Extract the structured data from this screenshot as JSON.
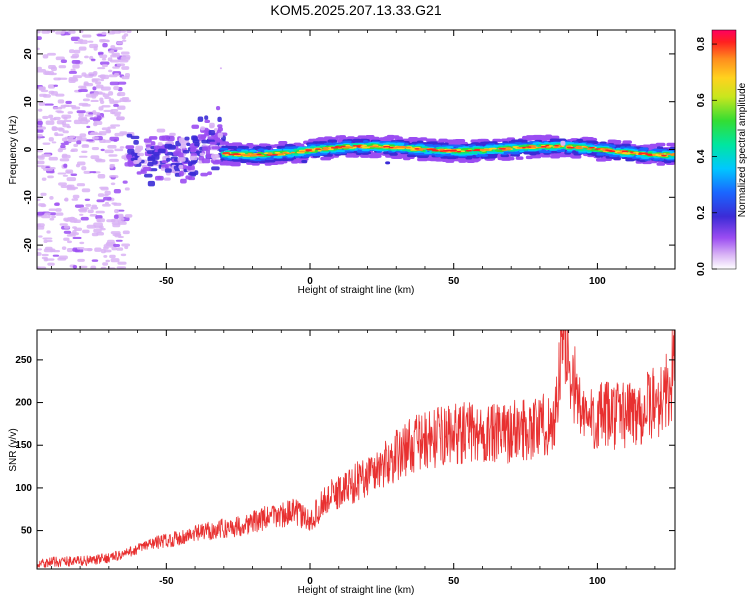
{
  "figure": {
    "title": "KOM5.2025.207.13.33.G21"
  },
  "colors": {
    "snr_line": "#e83030",
    "frame": "#000000",
    "colormap": [
      "#ffffff",
      "#d9b3f5",
      "#9b4df2",
      "#3b2bd6",
      "#1a66ff",
      "#00c8ff",
      "#00e6a0",
      "#33dd33",
      "#c8e61e",
      "#ffd21e",
      "#ff8c1e",
      "#ff2020",
      "#ff0060"
    ]
  },
  "chart_data": [
    {
      "type": "heatmap",
      "title": "",
      "xlabel": "Height of straight line (km)",
      "ylabel": "Frequency (Hz)",
      "xlim": [
        -95,
        127
      ],
      "ylim": [
        -25,
        25
      ],
      "xticks": [
        -50,
        0,
        50,
        100
      ],
      "yticks": [
        -20,
        -10,
        0,
        10,
        20
      ],
      "colorbar": {
        "label": "Normalized spectral amplitude",
        "range": [
          0,
          0.85
        ],
        "ticks": [
          0.0,
          0.2,
          0.4,
          0.6,
          0.8
        ]
      },
      "features": [
        {
          "description": "scattered weak noise",
          "x_range": [
            -95,
            -63
          ],
          "y_range": [
            -25,
            25
          ],
          "amplitude": 0.1
        },
        {
          "description": "onset cluster",
          "x_range": [
            -63,
            -30
          ],
          "y_range": [
            -6,
            6
          ],
          "amplitude": 0.25
        },
        {
          "description": "narrow band near 0 Hz",
          "x_range": [
            -30,
            127
          ],
          "y_range": [
            -2,
            2
          ],
          "amplitude_peak": 0.85
        }
      ]
    },
    {
      "type": "line",
      "title": "",
      "xlabel": "Height of straight line (km)",
      "ylabel": "SNR (v/v)",
      "xlim": [
        -95,
        127
      ],
      "ylim": [
        5,
        285
      ],
      "xticks": [
        -50,
        0,
        50,
        100
      ],
      "yticks": [
        50,
        100,
        150,
        200,
        250
      ],
      "series": [
        {
          "x": [
            -95,
            -85,
            -75,
            -65,
            -55,
            -45,
            -35,
            -25,
            -15,
            -5,
            0,
            5,
            15,
            25,
            35,
            45,
            55,
            65,
            75,
            85,
            88,
            95,
            105,
            115,
            120,
            125,
            127
          ],
          "y": [
            12,
            14,
            15,
            22,
            35,
            42,
            50,
            55,
            65,
            72,
            60,
            85,
            105,
            125,
            150,
            160,
            165,
            162,
            170,
            175,
            280,
            180,
            185,
            190,
            200,
            215,
            250
          ]
        }
      ]
    }
  ]
}
